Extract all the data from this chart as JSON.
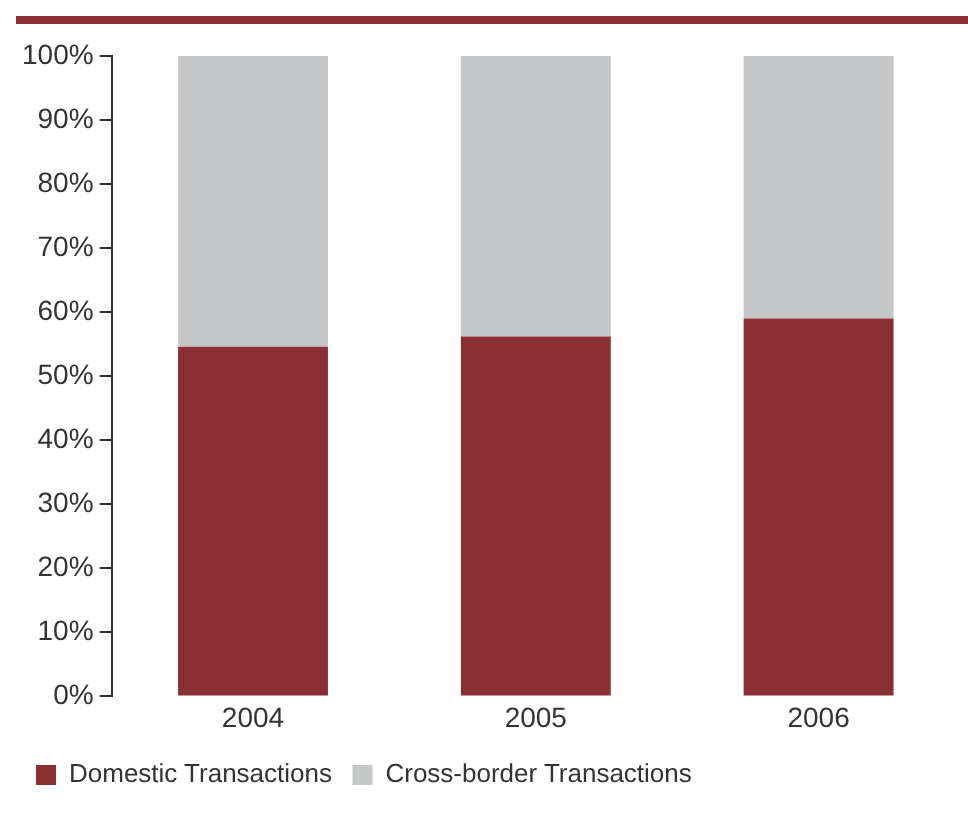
{
  "chart_data": {
    "type": "bar",
    "stacked": true,
    "categories": [
      "2004",
      "2005",
      "2006"
    ],
    "series": [
      {
        "name": "Domestic Transactions",
        "color": "#8a3033",
        "values": [
          54.6,
          56.2,
          59.0
        ]
      },
      {
        "name": "Cross-border Transactions",
        "color": "#c6c7c9",
        "values": [
          45.4,
          43.8,
          41.0
        ]
      }
    ],
    "ylim": [
      0,
      100
    ],
    "yticks": [
      {
        "value": 0,
        "label": "0%"
      },
      {
        "value": 10,
        "label": "10%"
      },
      {
        "value": 20,
        "label": "20%"
      },
      {
        "value": 30,
        "label": "30%"
      },
      {
        "value": 40,
        "label": "40%"
      },
      {
        "value": 50,
        "label": "50%"
      },
      {
        "value": 60,
        "label": "60%"
      },
      {
        "value": 70,
        "label": "70%"
      },
      {
        "value": 80,
        "label": "80%"
      },
      {
        "value": 90,
        "label": "90%"
      },
      {
        "value": 100,
        "label": "100%"
      }
    ],
    "grid": false,
    "legend": "bottom"
  }
}
